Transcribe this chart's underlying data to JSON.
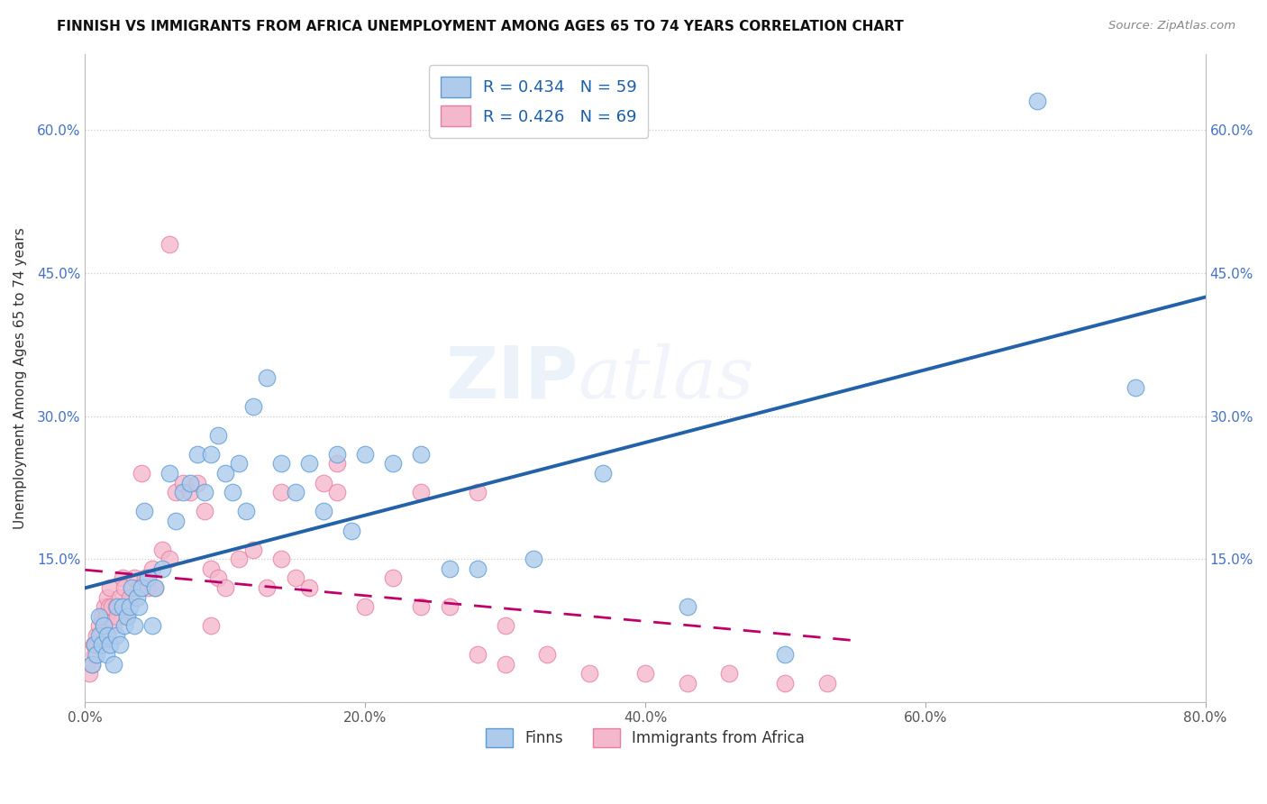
{
  "title": "FINNISH VS IMMIGRANTS FROM AFRICA UNEMPLOYMENT AMONG AGES 65 TO 74 YEARS CORRELATION CHART",
  "source": "Source: ZipAtlas.com",
  "ylabel": "Unemployment Among Ages 65 to 74 years",
  "xlim": [
    0.0,
    0.8
  ],
  "ylim": [
    0.0,
    0.68
  ],
  "x_ticks": [
    0.0,
    0.2,
    0.4,
    0.6,
    0.8
  ],
  "x_tick_labels": [
    "0.0%",
    "20.0%",
    "40.0%",
    "60.0%",
    "80.0%"
  ],
  "y_ticks": [
    0.0,
    0.15,
    0.3,
    0.45,
    0.6
  ],
  "y_tick_labels": [
    "",
    "15.0%",
    "30.0%",
    "45.0%",
    "60.0%"
  ],
  "finn_color": "#aecbec",
  "finn_edge_color": "#5b9bd5",
  "africa_color": "#f4b8cc",
  "africa_edge_color": "#e87fa0",
  "finn_R": 0.434,
  "finn_N": 59,
  "africa_R": 0.426,
  "africa_N": 69,
  "finn_line_color": "#2362a8",
  "africa_line_color": "#c0006a",
  "watermark_ZIP": "ZIP",
  "watermark_atlas": "atlas",
  "legend_label_finn": "Finns",
  "legend_label_africa": "Immigrants from Africa",
  "finn_x": [
    0.005,
    0.007,
    0.008,
    0.01,
    0.01,
    0.012,
    0.013,
    0.015,
    0.016,
    0.018,
    0.02,
    0.022,
    0.023,
    0.025,
    0.027,
    0.028,
    0.03,
    0.032,
    0.033,
    0.035,
    0.037,
    0.038,
    0.04,
    0.042,
    0.045,
    0.048,
    0.05,
    0.055,
    0.06,
    0.065,
    0.07,
    0.075,
    0.08,
    0.085,
    0.09,
    0.095,
    0.1,
    0.105,
    0.11,
    0.115,
    0.12,
    0.13,
    0.14,
    0.15,
    0.16,
    0.17,
    0.18,
    0.19,
    0.2,
    0.22,
    0.24,
    0.26,
    0.28,
    0.32,
    0.37,
    0.43,
    0.5,
    0.68,
    0.75
  ],
  "finn_y": [
    0.04,
    0.06,
    0.05,
    0.07,
    0.09,
    0.06,
    0.08,
    0.05,
    0.07,
    0.06,
    0.04,
    0.07,
    0.1,
    0.06,
    0.1,
    0.08,
    0.09,
    0.1,
    0.12,
    0.08,
    0.11,
    0.1,
    0.12,
    0.2,
    0.13,
    0.08,
    0.12,
    0.14,
    0.24,
    0.19,
    0.22,
    0.23,
    0.26,
    0.22,
    0.26,
    0.28,
    0.24,
    0.22,
    0.25,
    0.2,
    0.31,
    0.34,
    0.25,
    0.22,
    0.25,
    0.2,
    0.26,
    0.18,
    0.26,
    0.25,
    0.26,
    0.14,
    0.14,
    0.15,
    0.24,
    0.1,
    0.05,
    0.63,
    0.33
  ],
  "africa_x": [
    0.003,
    0.005,
    0.006,
    0.007,
    0.008,
    0.009,
    0.01,
    0.011,
    0.012,
    0.013,
    0.014,
    0.015,
    0.016,
    0.017,
    0.018,
    0.019,
    0.02,
    0.022,
    0.023,
    0.025,
    0.027,
    0.028,
    0.03,
    0.032,
    0.035,
    0.038,
    0.04,
    0.043,
    0.045,
    0.048,
    0.05,
    0.055,
    0.06,
    0.065,
    0.07,
    0.075,
    0.08,
    0.085,
    0.09,
    0.095,
    0.1,
    0.11,
    0.12,
    0.13,
    0.14,
    0.15,
    0.16,
    0.17,
    0.18,
    0.2,
    0.22,
    0.24,
    0.26,
    0.28,
    0.3,
    0.33,
    0.36,
    0.4,
    0.43,
    0.46,
    0.5,
    0.53,
    0.24,
    0.28,
    0.3,
    0.18,
    0.14,
    0.09,
    0.06
  ],
  "africa_y": [
    0.03,
    0.04,
    0.06,
    0.05,
    0.07,
    0.06,
    0.08,
    0.07,
    0.09,
    0.08,
    0.1,
    0.09,
    0.11,
    0.1,
    0.12,
    0.1,
    0.08,
    0.1,
    0.09,
    0.11,
    0.13,
    0.12,
    0.09,
    0.11,
    0.13,
    0.12,
    0.24,
    0.13,
    0.12,
    0.14,
    0.12,
    0.16,
    0.15,
    0.22,
    0.23,
    0.22,
    0.23,
    0.2,
    0.14,
    0.13,
    0.12,
    0.15,
    0.16,
    0.12,
    0.15,
    0.13,
    0.12,
    0.23,
    0.25,
    0.1,
    0.13,
    0.1,
    0.1,
    0.05,
    0.04,
    0.05,
    0.03,
    0.03,
    0.02,
    0.03,
    0.02,
    0.02,
    0.22,
    0.22,
    0.08,
    0.22,
    0.22,
    0.08,
    0.48
  ]
}
